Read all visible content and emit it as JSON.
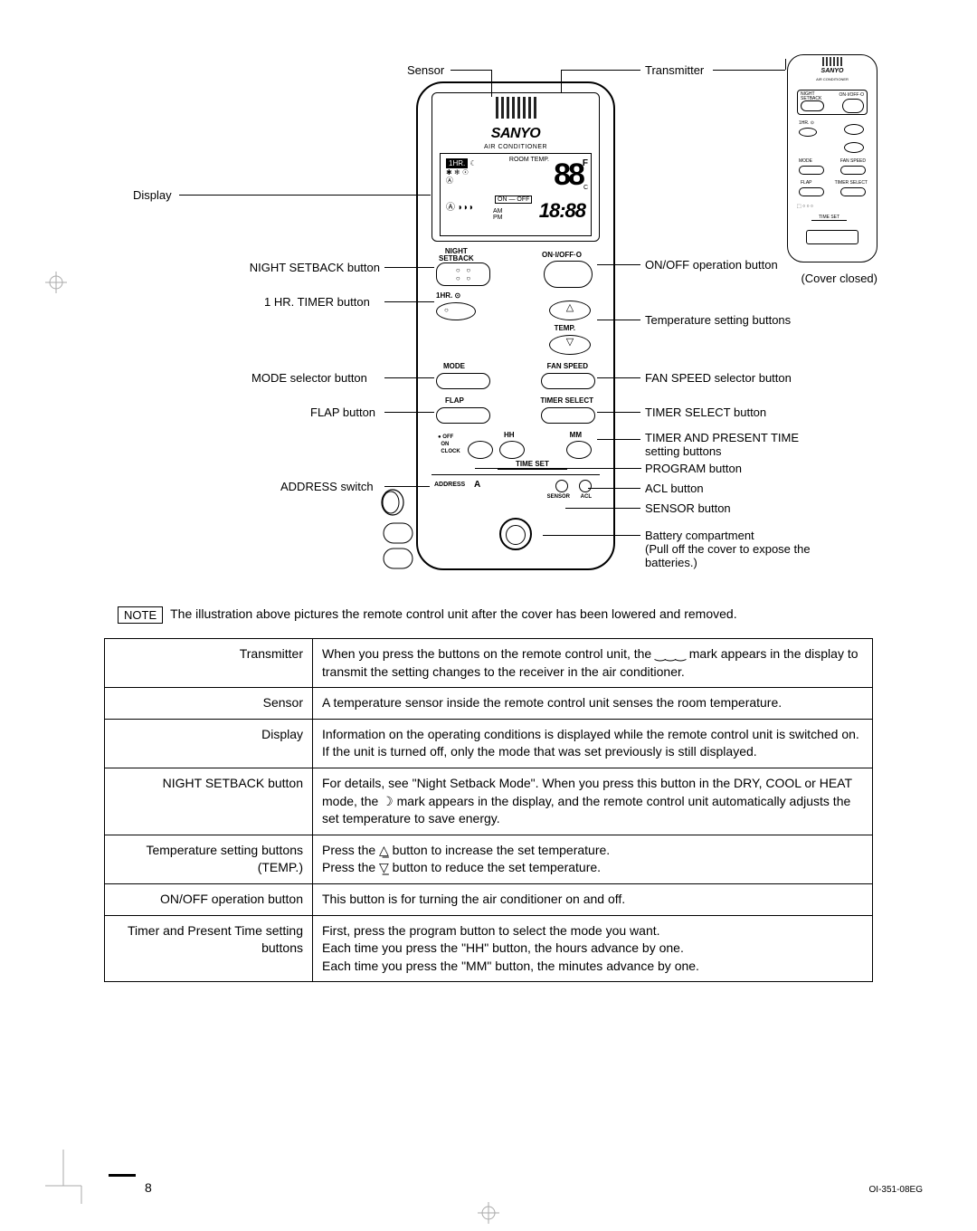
{
  "diagram": {
    "labels_left": {
      "sensor": "Sensor",
      "display": "Display",
      "night_setback": "NIGHT SETBACK button",
      "hr_timer": "1 HR. TIMER button",
      "mode_selector": "MODE selector button",
      "flap": "FLAP button",
      "address": "ADDRESS switch"
    },
    "labels_right": {
      "transmitter": "Transmitter",
      "cover_closed": "(Cover closed)",
      "onoff": "ON/OFF operation button",
      "temp_setting": "Temperature setting buttons",
      "fan_speed": "FAN SPEED selector button",
      "timer_select": "TIMER SELECT button",
      "timer_present_1": "TIMER AND PRESENT TIME",
      "timer_present_2": "setting buttons",
      "program": "PROGRAM button",
      "acl": "ACL button",
      "sensor_btn": "SENSOR button",
      "battery_1": "Battery compartment",
      "battery_2": "(Pull off the cover to expose the",
      "battery_3": "batteries.)"
    },
    "remote_large": {
      "brand": "SANYO",
      "subbrand": "AIR CONDITIONER",
      "lcd": {
        "hr": "1HR.",
        "roomtemp": "ROOM TEMP.",
        "big88": "88",
        "f": "F",
        "c": "C",
        "auto": "Ⓐ",
        "fan": "⌁⌁⌁",
        "icons": "✱ ❄ ☉",
        "am": "AM",
        "pm": "PM",
        "onoff": "ON — OFF",
        "clock": "18:88",
        "signal": "Ⓐ ◗◗◗"
      },
      "btn_labels": {
        "night_setback": "NIGHT\nSETBACK",
        "onoff": "ON·I/OFF·O",
        "hr": "1HR. ⊙",
        "temp": "TEMP.",
        "mode": "MODE",
        "fanspeed": "FAN SPEED",
        "flap": "FLAP",
        "timerselect": "TIMER SELECT",
        "hh": "HH",
        "mm": "MM",
        "timeset": "TIME SET",
        "off": "OFF",
        "on": "ON",
        "clock": "CLOCK",
        "address": "ADDRESS",
        "a": "A",
        "sensor": "SENSOR",
        "acl": "ACL"
      }
    },
    "remote_small": {
      "brand": "SANYO",
      "sub": "AIR CONDITIONER",
      "night": "NIGHT\nSETBACK",
      "onoff": "ON·I/OFF·O",
      "hr": "1HR. ⊙",
      "mode": "MODE",
      "fanspeed": "FAN SPEED",
      "flap": "FLAP",
      "timerselect": "TIMER SELECT",
      "timeset": "TIME SET"
    }
  },
  "note": {
    "label": "NOTE",
    "text": "The illustration above pictures the remote control unit after the cover has been lowered and removed."
  },
  "table": {
    "rows": [
      {
        "k": "Transmitter",
        "v": "When you press the buttons on the remote control unit, the  ‿‿‿  mark appears in the display to transmit the setting changes to the receiver in the air conditioner."
      },
      {
        "k": "Sensor",
        "v": "A temperature sensor inside the remote control unit senses the room temperature."
      },
      {
        "k": "Display",
        "v": "Information on the operating conditions is displayed while the remote control unit is switched on. If the unit is turned off, only the mode that was set previously is still displayed."
      },
      {
        "k": "NIGHT SETBACK button",
        "v": "For details, see \"Night Setback Mode\". When you press this button in the DRY, COOL or HEAT mode, the  ☽  mark appears in the display, and the remote control unit automatically adjusts the set temperature to save energy."
      },
      {
        "k": "Temperature setting buttons (TEMP.)",
        "v": "Press the  △̲  button to increase the set temperature.\nPress the  ▽̲  button to reduce the set temperature."
      },
      {
        "k": "ON/OFF operation button",
        "v": "This button is for turning the air conditioner on and off."
      },
      {
        "k": "Timer and Present Time setting buttons",
        "v": "First, press the program button to select the mode you want.\nEach time you press the \"HH\" button, the hours advance by one.\nEach time you press the \"MM\" button, the minutes advance by one."
      }
    ]
  },
  "page_number": "8",
  "doc_code": "OI-351-08EG",
  "colors": {
    "text": "#000000",
    "bg": "#ffffff",
    "line": "#000000"
  }
}
